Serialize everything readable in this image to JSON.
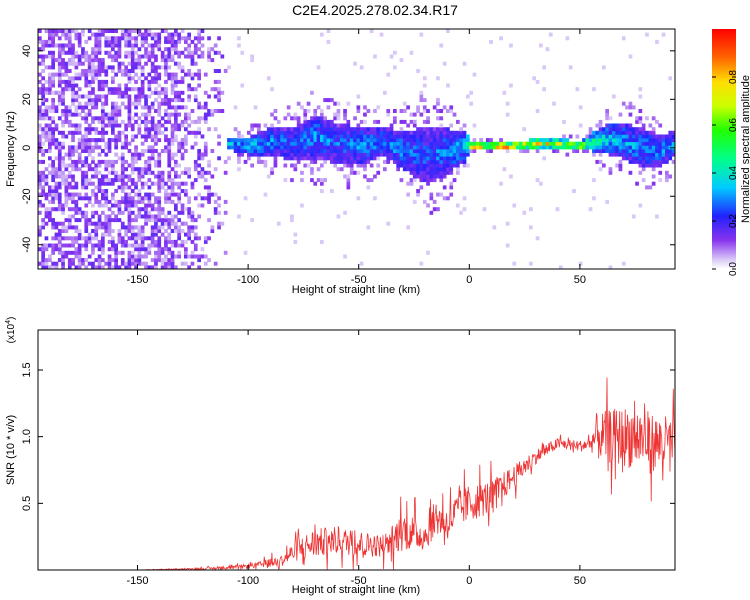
{
  "title": "C2E4.2025.278.02.34.R17",
  "chart_data": [
    {
      "type": "heatmap",
      "name": "spectrogram",
      "xlabel": "Height of straight line (km)",
      "ylabel": "Frequency (Hz)",
      "xlim": [
        -195,
        93
      ],
      "ylim": [
        -50,
        49
      ],
      "xticks": [
        -150,
        -100,
        -50,
        0,
        50
      ],
      "yticks": [
        -40,
        -20,
        0,
        20,
        40
      ],
      "colorbar": {
        "label": "Normalized spectral amplitude",
        "range": [
          0,
          1
        ],
        "ticks": [
          "0.0",
          "0.2",
          "0.4",
          "0.6",
          "0.8"
        ],
        "tick_values": [
          0,
          0.2,
          0.4,
          0.6,
          0.8
        ]
      },
      "noise_region_x": [
        -195,
        -110
      ],
      "signal_band": [
        {
          "x": -108,
          "center": 1,
          "halfwidth": 3,
          "amp": 0.35
        },
        {
          "x": -100,
          "center": 0,
          "halfwidth": 4,
          "amp": 0.4
        },
        {
          "x": -90,
          "center": 2,
          "halfwidth": 6,
          "amp": 0.35
        },
        {
          "x": -80,
          "center": 1,
          "halfwidth": 7,
          "amp": 0.3
        },
        {
          "x": -70,
          "center": 4,
          "halfwidth": 9,
          "amp": 0.35
        },
        {
          "x": -60,
          "center": 1,
          "halfwidth": 8,
          "amp": 0.3
        },
        {
          "x": -50,
          "center": 0,
          "halfwidth": 8,
          "amp": 0.35
        },
        {
          "x": -40,
          "center": 2,
          "halfwidth": 6,
          "amp": 0.35
        },
        {
          "x": -30,
          "center": -2,
          "halfwidth": 8,
          "amp": 0.35
        },
        {
          "x": -20,
          "center": -4,
          "halfwidth": 12,
          "amp": 0.3
        },
        {
          "x": -10,
          "center": -2,
          "halfwidth": 9,
          "amp": 0.35
        },
        {
          "x": -2,
          "center": 0,
          "halfwidth": 6,
          "amp": 0.4
        },
        {
          "x": 0,
          "center": 0,
          "halfwidth": 1.5,
          "amp": 0.95
        },
        {
          "x": 10,
          "center": 0,
          "halfwidth": 1.5,
          "amp": 1.0
        },
        {
          "x": 20,
          "center": 0,
          "halfwidth": 1.5,
          "amp": 0.95
        },
        {
          "x": 30,
          "center": 1,
          "halfwidth": 2,
          "amp": 0.8
        },
        {
          "x": 40,
          "center": 1,
          "halfwidth": 2,
          "amp": 0.75
        },
        {
          "x": 50,
          "center": 0,
          "halfwidth": 2,
          "amp": 0.7
        },
        {
          "x": 55,
          "center": 2,
          "halfwidth": 4,
          "amp": 0.5
        },
        {
          "x": 65,
          "center": 3,
          "halfwidth": 7,
          "amp": 0.4
        },
        {
          "x": 75,
          "center": 0,
          "halfwidth": 8,
          "amp": 0.35
        },
        {
          "x": 85,
          "center": -2,
          "halfwidth": 7,
          "amp": 0.35
        },
        {
          "x": 93,
          "center": 1,
          "halfwidth": 5,
          "amp": 0.35
        }
      ]
    },
    {
      "type": "line",
      "name": "snr",
      "xlabel": "Height of straight line (km)",
      "ylabel": "SNR (10 * v/v)",
      "y_multiplier": "(x10",
      "y_multiplier_exp": "4",
      "y_multiplier_close": ")",
      "xlim": [
        -195,
        93
      ],
      "ylim": [
        0,
        1.8
      ],
      "xticks": [
        -150,
        -100,
        -50,
        0,
        50
      ],
      "yticks": [
        0.5,
        1.0,
        1.5
      ],
      "ytick_labels": [
        "0.5",
        "1.0",
        "1.5"
      ],
      "color": "#ee3333",
      "series": [
        {
          "x": [
            -195,
            -150,
            -120,
            -105,
            -95,
            -85,
            -78,
            -70,
            -60,
            -50,
            -40,
            -35,
            -30,
            -20,
            -15,
            -10,
            -5,
            0,
            10,
            20,
            30,
            40,
            50,
            55,
            57,
            65,
            75,
            85,
            93
          ],
          "y": [
            0.0,
            0.0,
            0.01,
            0.02,
            0.04,
            0.07,
            0.15,
            0.2,
            0.22,
            0.2,
            0.18,
            0.22,
            0.3,
            0.25,
            0.4,
            0.35,
            0.45,
            0.5,
            0.55,
            0.7,
            0.85,
            0.95,
            0.93,
            0.95,
            1.0,
            1.0,
            1.0,
            0.95,
            0.95
          ],
          "noise": [
            0.0,
            0.0,
            0.01,
            0.02,
            0.03,
            0.06,
            0.12,
            0.16,
            0.15,
            0.14,
            0.12,
            0.16,
            0.22,
            0.15,
            0.2,
            0.18,
            0.2,
            0.2,
            0.18,
            0.12,
            0.08,
            0.06,
            0.06,
            0.08,
            0.25,
            0.3,
            0.35,
            0.3,
            0.3
          ]
        }
      ]
    }
  ]
}
